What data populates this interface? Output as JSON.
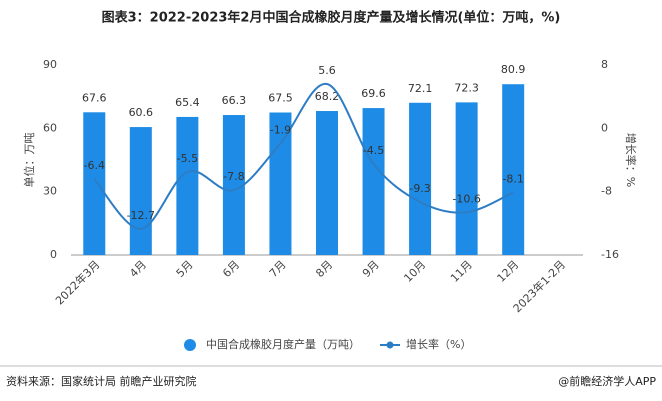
{
  "chart_data": {
    "type": "combo",
    "title": "图表3：2022-2023年2月中国合成橡胶月度产量及增长情况(单位：万吨，%)",
    "y_label": "单位：万吨",
    "y2_label": "增长率：%",
    "categories": [
      "2022年3月",
      "4月",
      "5月",
      "6月",
      "7月",
      "8月",
      "9月",
      "10月",
      "11月",
      "12月",
      "2023年1-2月"
    ],
    "series": [
      {
        "name": "中国合成橡胶月度产量（万吨）",
        "type": "bar",
        "color": "#1e8ce6",
        "values": [
          67.6,
          60.6,
          65.4,
          66.3,
          67.5,
          68.2,
          69.6,
          72.1,
          72.3,
          80.9,
          null
        ]
      },
      {
        "name": "增长率（%）",
        "type": "line",
        "axis": "y2",
        "color": "#2e7dc4",
        "values": [
          -6.4,
          -12.7,
          -5.5,
          -7.8,
          -1.9,
          5.6,
          -4.5,
          -9.3,
          -10.6,
          -8.1,
          null
        ]
      }
    ],
    "ylim": [
      0,
      90
    ],
    "yticks": [
      0,
      30,
      60,
      90
    ],
    "y2lim": [
      -16,
      8
    ],
    "y2ticks": [
      -16,
      -8,
      0,
      8
    ],
    "grid": false,
    "source": "资料来源：国家统计局 前瞻产业研究院",
    "credit": "@前瞻经济学人APP"
  }
}
